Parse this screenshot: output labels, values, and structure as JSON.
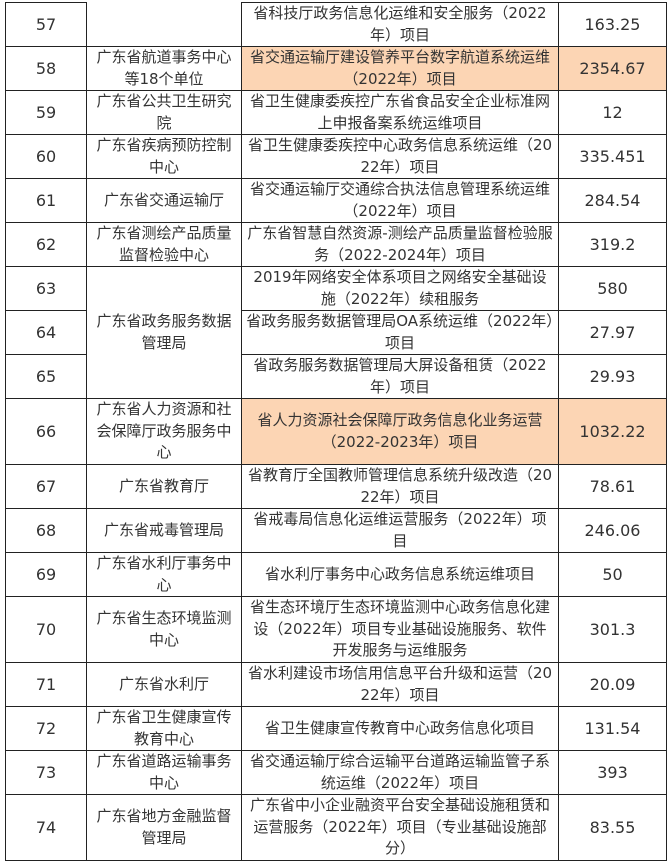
{
  "highlight_color": "#fcd5b4",
  "rows": [
    {
      "no": "57",
      "unit": "",
      "project": "省科技厅政务信息化运维和安全服务（2022年）项目",
      "amount": "163.25",
      "highlight": false
    },
    {
      "no": "58",
      "unit": "广东省航道事务中心等18个单位",
      "project": "省交通运输厅建设管养平台数字航道系统运维（2022年）项目",
      "amount": "2354.67",
      "highlight": true
    },
    {
      "no": "59",
      "unit": "广东省公共卫生研究院",
      "project": "省卫生健康委疾控广东省食品安全企业标准网上申报备案系统运维项目",
      "amount": "12",
      "highlight": false
    },
    {
      "no": "60",
      "unit": "广东省疾病预防控制中心",
      "project": "省卫生健康委疾控中心政务信息系统运维（2022年）项目",
      "amount": "335.451",
      "highlight": false
    },
    {
      "no": "61",
      "unit": "广东省交通运输厅",
      "project": "省交通运输厅交通综合执法信息管理系统运维（2022年）项目",
      "amount": "284.54",
      "highlight": false
    },
    {
      "no": "62",
      "unit": "广东省测绘产品质量监督检验中心",
      "project": "广东省智慧自然资源-测绘产品质量监督检验服务（2022-2024年）项目",
      "amount": "319.2",
      "highlight": false
    },
    {
      "no": "63",
      "unit": "广东省政务服务数据管理局",
      "project": "2019年网络安全体系项目之网络安全基础设施（2022年）续租服务",
      "amount": "580",
      "highlight": false
    },
    {
      "no": "64",
      "unit": null,
      "project": "省政务服务数据管理局OA系统运维（2022年）项目",
      "amount": "27.97",
      "highlight": false
    },
    {
      "no": "65",
      "unit": null,
      "project": "省政务服务数据管理局大屏设备租赁（2022年）项目",
      "amount": "29.93",
      "highlight": false
    },
    {
      "no": "66",
      "unit": "广东省人力资源和社会保障厅政务服务中心",
      "project": "省人力资源社会保障厅政务信息化业务运营（2022-2023年）项目",
      "amount": "1032.22",
      "highlight": true
    },
    {
      "no": "67",
      "unit": "广东省教育厅",
      "project": "省教育厅全国教师管理信息系统升级改造（2022年）项目",
      "amount": "78.61",
      "highlight": false
    },
    {
      "no": "68",
      "unit": "广东省戒毒管理局",
      "project": "省戒毒局信息化运维运营服务（2022年）项目",
      "amount": "246.06",
      "highlight": false
    },
    {
      "no": "69",
      "unit": "广东省水利厅事务中心",
      "project": "省水利厅事务中心政务信息系统运维项目",
      "amount": "50",
      "highlight": false
    },
    {
      "no": "70",
      "unit": "广东省生态环境监测中心",
      "project": "省生态环境厅生态环境监测中心政务信息化建设（2022年）项目专业基础设施服务、软件开发服务与运维服务",
      "amount": "301.3",
      "highlight": false
    },
    {
      "no": "71",
      "unit": "广东省水利厅",
      "project": "省水利建设市场信用信息平台升级和运营（2022年）项目",
      "amount": "20.09",
      "highlight": false
    },
    {
      "no": "72",
      "unit": "广东省卫生健康宣传教育中心",
      "project": "省卫生健康宣传教育中心政务信息化项目",
      "amount": "131.54",
      "highlight": false
    },
    {
      "no": "73",
      "unit": "广东省道路运输事务中心",
      "project": "省交通运输厅综合运输平台道路运输监管子系统运维（2022年）项目",
      "amount": "393",
      "highlight": false
    },
    {
      "no": "74",
      "unit": "广东省地方金融监督管理局",
      "project": "广东省中小企业融资平台安全基础设施租赁和运营服务（2022年）项目（专业基础设施部分）",
      "amount": "83.55",
      "highlight": false
    }
  ]
}
